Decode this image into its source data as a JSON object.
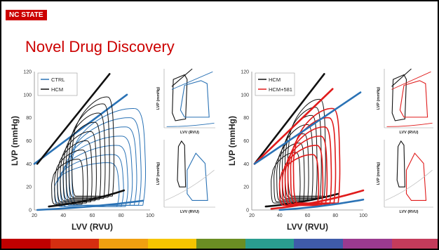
{
  "header": {
    "logo_text": "NC STATE"
  },
  "slide": {
    "title": "Novel Drug Discovery"
  },
  "colors": {
    "brand_red": "#cc0000",
    "ctrl_blue": "#2a72b5",
    "hcm_black": "#111111",
    "hcm581_red": "#e01b1b",
    "bottom_bar": [
      "#c00000",
      "#d62e10",
      "#f0a010",
      "#f5c500",
      "#6b8e23",
      "#2a9d8f",
      "#3f5ba9",
      "#9b3a8f",
      "#c43b5b"
    ]
  },
  "chart_data": [
    {
      "type": "line",
      "panel": "left-main",
      "xlabel": "LVV (RVU)",
      "ylabel": "LVP (mmHg)",
      "xlim": [
        20,
        100
      ],
      "ylim": [
        0,
        120
      ],
      "xticks": [
        20,
        40,
        60,
        80,
        100
      ],
      "yticks": [
        0,
        20,
        40,
        60,
        80,
        100,
        120
      ],
      "legend": {
        "placement": "top-left",
        "entries": [
          "CTRL",
          "HCM"
        ]
      },
      "series": [
        {
          "name": "CTRL",
          "color": "#2a72b5",
          "loops": [
            {
              "v0": 46,
              "v1": 95,
              "p0": 4,
              "p1": 88
            },
            {
              "v0": 44,
              "v1": 92,
              "p0": 4,
              "p1": 80
            },
            {
              "v0": 42,
              "v1": 89,
              "p0": 4,
              "p1": 72
            },
            {
              "v0": 40,
              "v1": 86,
              "p0": 4,
              "p1": 64
            },
            {
              "v0": 38,
              "v1": 83,
              "p0": 3,
              "p1": 56
            },
            {
              "v0": 36,
              "v1": 80,
              "p0": 3,
              "p1": 48
            },
            {
              "v0": 34,
              "v1": 77,
              "p0": 3,
              "p1": 41
            }
          ],
          "esp": [
            [
              20,
              40
            ],
            [
              84,
              100
            ]
          ],
          "edp": [
            [
              22,
              0
            ],
            [
              95,
              8
            ]
          ]
        },
        {
          "name": "HCM",
          "color": "#111111",
          "loops": [
            {
              "v0": 46,
              "v1": 74,
              "p0": 12,
              "p1": 98
            },
            {
              "v0": 44,
              "v1": 71,
              "p0": 11,
              "p1": 92
            },
            {
              "v0": 42,
              "v1": 68,
              "p0": 10,
              "p1": 84
            },
            {
              "v0": 40,
              "v1": 65,
              "p0": 9,
              "p1": 76
            },
            {
              "v0": 38,
              "v1": 62,
              "p0": 8,
              "p1": 68
            },
            {
              "v0": 36,
              "v1": 59,
              "p0": 7,
              "p1": 60
            },
            {
              "v0": 34,
              "v1": 56,
              "p0": 6,
              "p1": 52
            },
            {
              "v0": 32,
              "v1": 53,
              "p0": 5,
              "p1": 44
            }
          ],
          "esp": [
            [
              22,
              40
            ],
            [
              72,
              118
            ]
          ],
          "edp": [
            [
              30,
              3
            ],
            [
              82,
              17
            ]
          ]
        }
      ]
    },
    {
      "type": "line",
      "panel": "left-inset-top",
      "xlabel": "LVV (RVU)",
      "ylabel": "LVP (mmHg)",
      "series": [
        {
          "name": "",
          "color": "#111111"
        },
        {
          "name": "",
          "color": "#2a72b5"
        }
      ]
    },
    {
      "type": "line",
      "panel": "left-inset-bottom",
      "xlabel": "LVV (RVU)",
      "ylabel": "LVP (mmHg)",
      "series": [
        {
          "name": "",
          "color": "#111111"
        },
        {
          "name": "",
          "color": "#2a72b5"
        }
      ]
    },
    {
      "type": "line",
      "panel": "right-main",
      "xlabel": "LVV (RVU)",
      "ylabel": "LVP (mmHg)",
      "xlim": [
        20,
        100
      ],
      "ylim": [
        0,
        120
      ],
      "xticks": [
        20,
        40,
        60,
        80,
        100
      ],
      "yticks": [
        0,
        20,
        40,
        60,
        80,
        100,
        120
      ],
      "legend": {
        "placement": "top-left",
        "entries": [
          "HCM",
          "HCM+581"
        ]
      },
      "series": [
        {
          "name": "HCM",
          "color": "#111111",
          "loops": [
            {
              "v0": 46,
              "v1": 72,
              "p0": 12,
              "p1": 96
            },
            {
              "v0": 44,
              "v1": 69,
              "p0": 11,
              "p1": 89
            },
            {
              "v0": 42,
              "v1": 66,
              "p0": 10,
              "p1": 82
            },
            {
              "v0": 40,
              "v1": 63,
              "p0": 9,
              "p1": 74
            },
            {
              "v0": 38,
              "v1": 60,
              "p0": 8,
              "p1": 66
            },
            {
              "v0": 36,
              "v1": 57,
              "p0": 7,
              "p1": 58
            },
            {
              "v0": 34,
              "v1": 54,
              "p0": 6,
              "p1": 50
            }
          ],
          "esp": [
            [
              22,
              40
            ],
            [
              72,
              118
            ]
          ],
          "edp": [
            [
              30,
              3
            ],
            [
              82,
              14
            ]
          ]
        },
        {
          "name": "HCM+581",
          "color": "#e01b1b",
          "loops": [
            {
              "v0": 50,
              "v1": 82,
              "p0": 6,
              "p1": 88
            },
            {
              "v0": 48,
              "v1": 79,
              "p0": 6,
              "p1": 80
            },
            {
              "v0": 46,
              "v1": 76,
              "p0": 5,
              "p1": 72
            },
            {
              "v0": 44,
              "v1": 73,
              "p0": 5,
              "p1": 64
            },
            {
              "v0": 42,
              "v1": 70,
              "p0": 4,
              "p1": 56
            },
            {
              "v0": 40,
              "v1": 67,
              "p0": 4,
              "p1": 48
            }
          ],
          "esp": [
            [
              22,
              40
            ],
            [
              78,
              105
            ]
          ],
          "edp": [
            [
              34,
              1
            ],
            [
              100,
              17
            ]
          ]
        },
        {
          "name": "",
          "color": "#2a72b5",
          "esp": [
            [
              22,
              40
            ],
            [
              98,
              102
            ]
          ],
          "edp": [
            [
              40,
              0
            ],
            [
              100,
              9
            ]
          ]
        }
      ]
    },
    {
      "type": "line",
      "panel": "right-inset-top",
      "xlabel": "LVV (RVU)",
      "ylabel": "LVP (mmHg)",
      "series": [
        {
          "name": "",
          "color": "#111111"
        },
        {
          "name": "",
          "color": "#e01b1b"
        }
      ]
    },
    {
      "type": "line",
      "panel": "right-inset-bottom",
      "xlabel": "LVV (RVU)",
      "ylabel": "LVP (mmHg)",
      "series": [
        {
          "name": "",
          "color": "#111111"
        },
        {
          "name": "",
          "color": "#e01b1b"
        }
      ]
    }
  ]
}
